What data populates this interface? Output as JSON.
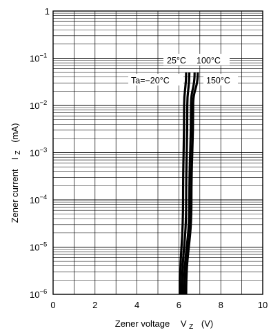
{
  "chart_data": {
    "type": "line",
    "x_axis": {
      "label_text": "Zener voltage",
      "label_symbol": "V",
      "label_subscript": "Z",
      "label_unit": "(V)",
      "range": [
        0,
        10
      ],
      "major_ticks": [
        0,
        2,
        4,
        6,
        8,
        10
      ],
      "minor_step": 1,
      "tick_labels": [
        "0",
        "2",
        "4",
        "6",
        "8",
        "10"
      ]
    },
    "y_axis": {
      "label_text": "Zener current",
      "label_symbol": "I",
      "label_subscript": "Z",
      "label_unit": "(mA)",
      "scale": "log",
      "range": [
        1e-06,
        1
      ],
      "decades": [
        {
          "value": 1,
          "base": "1",
          "exp": ""
        },
        {
          "value": 0.1,
          "base": "10",
          "exp": "−1"
        },
        {
          "value": 0.01,
          "base": "10",
          "exp": "−2"
        },
        {
          "value": 0.001,
          "base": "10",
          "exp": "−3"
        },
        {
          "value": 0.0001,
          "base": "10",
          "exp": "−4"
        },
        {
          "value": 1e-05,
          "base": "10",
          "exp": "−5"
        },
        {
          "value": 1e-06,
          "base": "10",
          "exp": "−6"
        }
      ]
    },
    "grid": true,
    "series": [
      {
        "name": "Ta=−20°C",
        "points": [
          [
            6.05,
            1e-06
          ],
          [
            6.2,
            0.0001
          ],
          [
            6.25,
            0.01
          ],
          [
            6.35,
            0.05
          ]
        ]
      },
      {
        "name": "25°C",
        "points": [
          [
            6.15,
            1e-06
          ],
          [
            6.35,
            0.0001
          ],
          [
            6.4,
            0.01
          ],
          [
            6.5,
            0.05
          ]
        ]
      },
      {
        "name": "100°C",
        "points": [
          [
            6.25,
            1e-06
          ],
          [
            6.5,
            0.0001
          ],
          [
            6.58,
            0.01
          ],
          [
            6.75,
            0.05
          ]
        ]
      },
      {
        "name": "150°C",
        "points": [
          [
            6.35,
            1e-06
          ],
          [
            6.6,
            0.0001
          ],
          [
            6.68,
            0.01
          ],
          [
            6.9,
            0.05
          ]
        ]
      }
    ],
    "annotations": {
      "row1": [
        "25°C",
        "100°C"
      ],
      "row2": [
        "Ta=−20°C",
        "150°C"
      ]
    }
  }
}
